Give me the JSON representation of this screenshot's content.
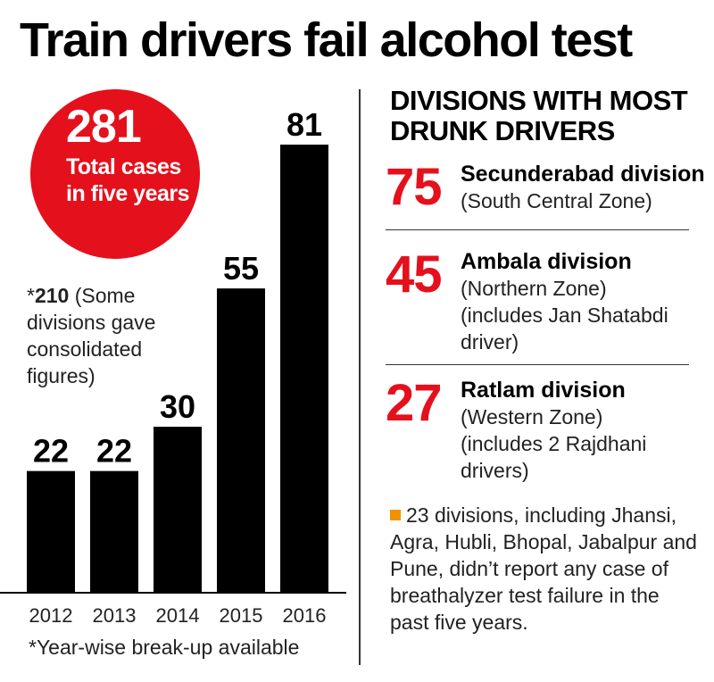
{
  "title": "Train drivers fail alcohol test",
  "highlight": {
    "number": "281",
    "text": "Total cases in five years",
    "color": "#e4101c"
  },
  "note": {
    "prefix": "*",
    "number": "210",
    "text": " (Some divisions gave consolidated figures)"
  },
  "footnote": "*Year-wise break-up available",
  "chart_data": {
    "type": "bar",
    "categories": [
      "2012",
      "2013",
      "2014",
      "2015",
      "2016"
    ],
    "values": [
      22,
      22,
      30,
      55,
      81
    ],
    "title": "",
    "xlabel": "",
    "ylabel": "",
    "ylim": [
      0,
      81
    ],
    "grid": false,
    "bar_color": "#000000"
  },
  "divisions": {
    "heading": "DIVISIONS WITH MOST DRUNK DRIVERS",
    "items": [
      {
        "number": "75",
        "name": "Secunderabad division",
        "zone": "(South Central Zone)",
        "extra": ""
      },
      {
        "number": "45",
        "name": "Ambala division",
        "zone": "(Northern Zone)",
        "extra": "(includes Jan Shatabdi driver)"
      },
      {
        "number": "27",
        "name": "Ratlam division",
        "zone": "(Western Zone)",
        "extra": "(includes 2 Rajdhani drivers)"
      }
    ]
  },
  "bullet": {
    "color": "#f39200",
    "text": "23 divisions, including Jhansi, Agra, Hubli, Bhopal, Jabalpur and Pune, didn’t report any case of breathalyzer test failure in the past five years."
  }
}
